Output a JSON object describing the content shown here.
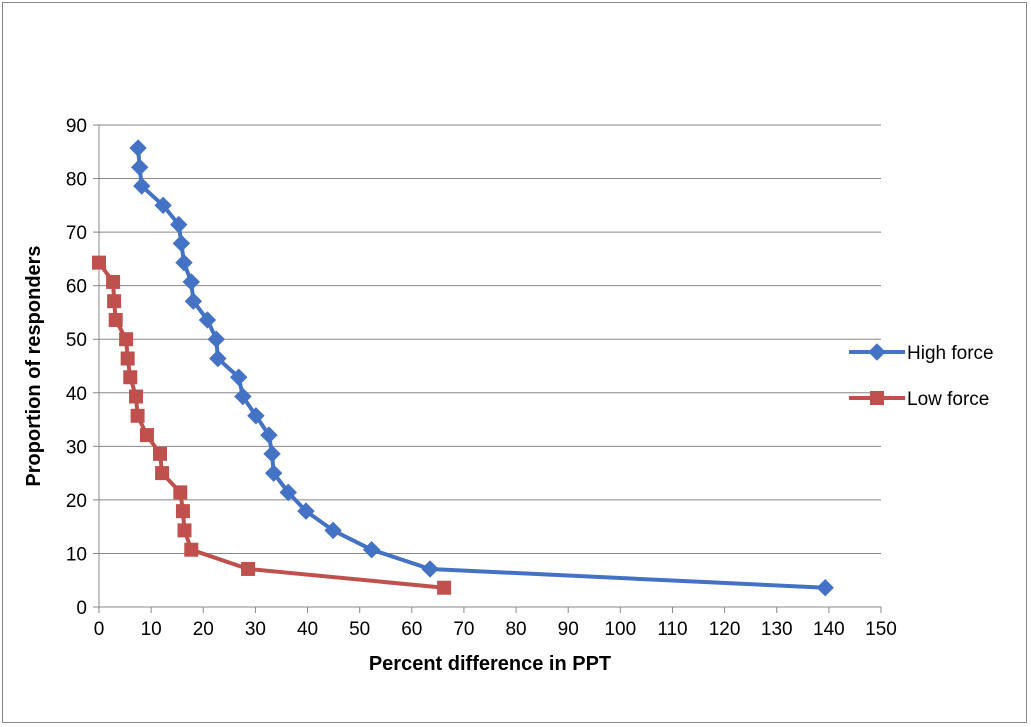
{
  "chart_data": {
    "type": "line",
    "title": "",
    "xlabel": "Percent difference in PPT",
    "ylabel": "Proportion of responders",
    "xlim": [
      0,
      150
    ],
    "ylim": [
      0,
      90
    ],
    "x_ticks": [
      0,
      10,
      20,
      30,
      40,
      50,
      60,
      70,
      80,
      90,
      100,
      110,
      120,
      130,
      140,
      150
    ],
    "y_ticks": [
      0,
      10,
      20,
      30,
      40,
      50,
      60,
      70,
      80,
      90
    ],
    "grid": "horizontal",
    "legend_position": "right",
    "series": [
      {
        "name": "High force",
        "color": "#4472C4",
        "marker": "diamond",
        "points": [
          [
            7.5,
            85.7
          ],
          [
            7.8,
            82.1
          ],
          [
            8.2,
            78.6
          ],
          [
            12.3,
            75.0
          ],
          [
            15.3,
            71.4
          ],
          [
            15.8,
            67.9
          ],
          [
            16.3,
            64.3
          ],
          [
            17.7,
            60.7
          ],
          [
            18.1,
            57.1
          ],
          [
            20.8,
            53.6
          ],
          [
            22.5,
            50.0
          ],
          [
            22.8,
            46.4
          ],
          [
            26.8,
            42.9
          ],
          [
            27.6,
            39.3
          ],
          [
            30.1,
            35.7
          ],
          [
            32.6,
            32.1
          ],
          [
            33.2,
            28.6
          ],
          [
            33.5,
            25.0
          ],
          [
            36.3,
            21.4
          ],
          [
            39.7,
            17.9
          ],
          [
            44.9,
            14.3
          ],
          [
            52.3,
            10.7
          ],
          [
            63.5,
            7.1
          ],
          [
            139.3,
            3.6
          ]
        ]
      },
      {
        "name": "Low force",
        "color": "#C0504D",
        "marker": "square",
        "points": [
          [
            0.0,
            64.3
          ],
          [
            2.7,
            60.7
          ],
          [
            2.9,
            57.1
          ],
          [
            3.2,
            53.6
          ],
          [
            5.2,
            50.0
          ],
          [
            5.5,
            46.4
          ],
          [
            6.0,
            42.9
          ],
          [
            7.1,
            39.3
          ],
          [
            7.4,
            35.7
          ],
          [
            9.2,
            32.1
          ],
          [
            11.7,
            28.6
          ],
          [
            12.1,
            25.0
          ],
          [
            15.6,
            21.4
          ],
          [
            16.1,
            17.9
          ],
          [
            16.4,
            14.3
          ],
          [
            17.7,
            10.7
          ],
          [
            28.6,
            7.1
          ],
          [
            66.2,
            3.6
          ]
        ]
      }
    ]
  }
}
